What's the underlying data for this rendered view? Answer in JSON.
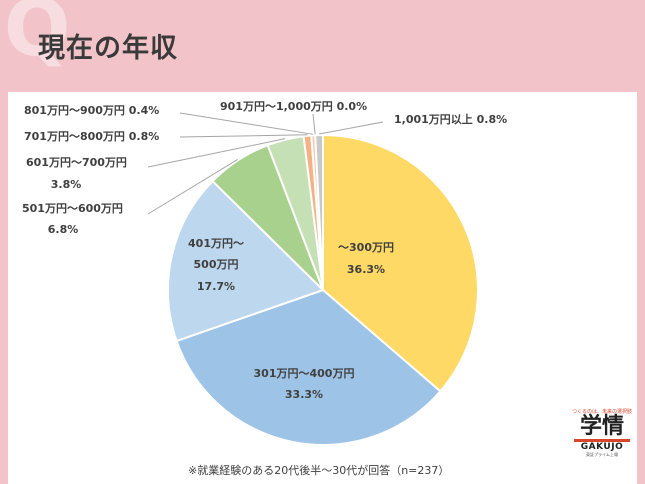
{
  "header": {
    "q_mark": "Q",
    "title": "現在の年収"
  },
  "chart_data": {
    "type": "pie",
    "title": "現在の年収",
    "slices": [
      {
        "name": "～300万円",
        "value": 36.3,
        "label": "36.3%",
        "color": "#ffd966"
      },
      {
        "name": "301万円～400万円",
        "value": 33.3,
        "label": "33.3%",
        "color": "#9dc3e6"
      },
      {
        "name": "401万円～500万円",
        "value": 17.7,
        "label": "17.7%",
        "color": "#bdd7ee"
      },
      {
        "name": "501万円～600万円",
        "value": 6.8,
        "label": "6.8%",
        "color": "#a9d18e"
      },
      {
        "name": "601万円～700万円",
        "value": 3.8,
        "label": "3.8%",
        "color": "#c5e0b4"
      },
      {
        "name": "701万円～800万円",
        "value": 0.8,
        "label": "0.8%",
        "color": "#f4b183"
      },
      {
        "name": "801万円～900万円",
        "value": 0.4,
        "label": "0.4%",
        "color": "#f8cbad"
      },
      {
        "name": "901万円～1,000万円",
        "value": 0.0,
        "label": "0.0%",
        "color": "#d9d9d9"
      },
      {
        "name": "1,001万円以上",
        "value": 0.8,
        "label": "0.8%",
        "color": "#c9c9c9"
      }
    ],
    "inside_labels": {
      "s0": {
        "line1": "～300万円",
        "line2": "36.3%"
      },
      "s1": {
        "line1": "301万円～400万円",
        "line2": "33.3%"
      },
      "s2": {
        "line1": "401万円～",
        "line2": "500万円",
        "line3": "17.7%"
      }
    },
    "outside_labels": {
      "s3": {
        "line1": "501万円～600万円",
        "line2": "6.8%"
      },
      "s4": {
        "line1": "601万円～700万円",
        "line2": "3.8%"
      },
      "s5": "701万円～800万円 0.8%",
      "s6": "801万円～900万円 0.4%",
      "s7": "901万円～1,000万円 0.0%",
      "s8": "1,001万円以上 0.8%"
    }
  },
  "footer": {
    "note": "※就業経験のある20代後半～30代が回答（n=237）"
  },
  "logo": {
    "tagline": "つくるのは、未来の選択肢",
    "kanji": "学情",
    "roman": "GAKUJO",
    "sub": "東証プライム上場"
  }
}
